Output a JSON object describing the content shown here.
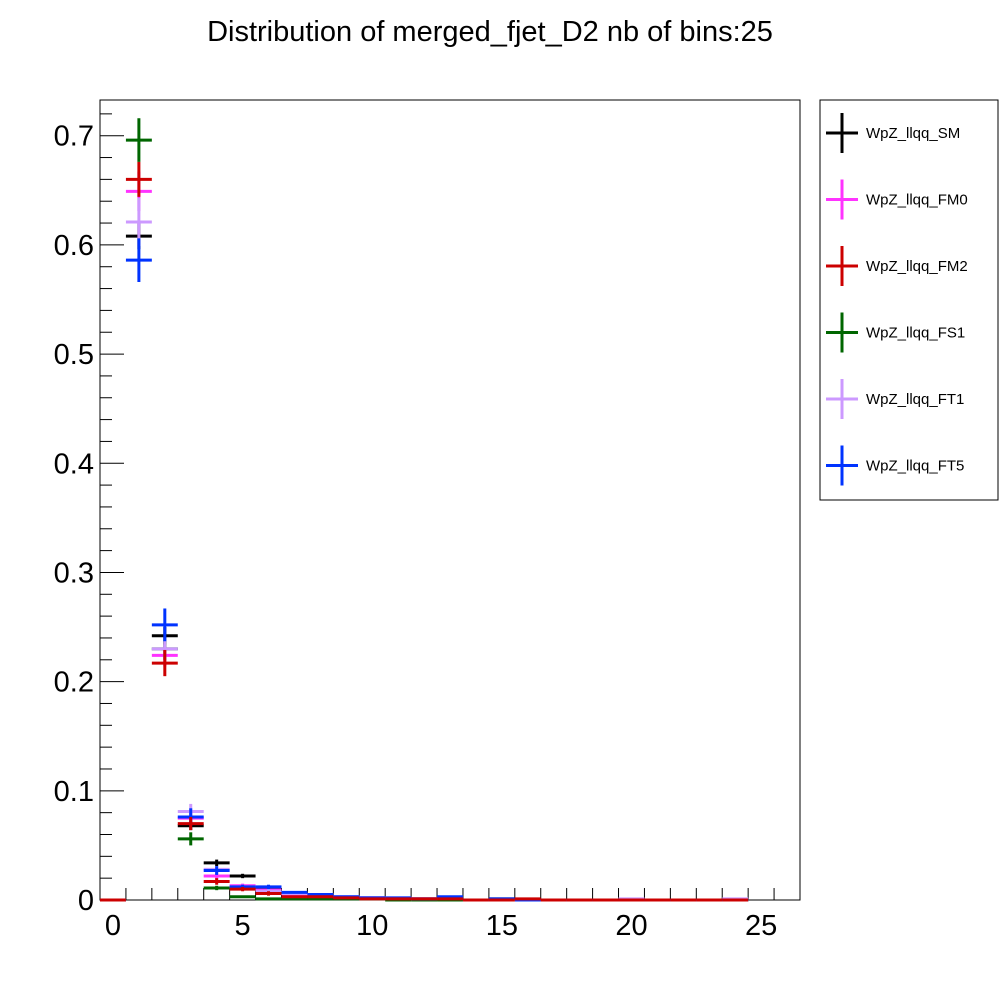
{
  "chart_data": {
    "type": "scatter",
    "title": "Distribution of merged_fjet_D2 nb of bins:25",
    "xlabel": "",
    "ylabel": "",
    "xlim": [
      -0.5,
      26.5
    ],
    "ylim": [
      0,
      0.7327
    ],
    "x_ticks": [
      0,
      5,
      10,
      15,
      20,
      25
    ],
    "x_tick_labels": [
      "0",
      "5",
      "10",
      "15",
      "20",
      "25"
    ],
    "y_ticks": [
      0,
      0.1,
      0.2,
      0.3,
      0.4,
      0.5,
      0.6,
      0.7
    ],
    "y_tick_labels": [
      "0",
      "0.1",
      "0.2",
      "0.3",
      "0.4",
      "0.5",
      "0.6",
      "0.7"
    ],
    "grid": false,
    "legend_position": "right-outside-top",
    "bin_width": 1,
    "x": [
      0,
      1,
      2,
      3,
      4,
      5,
      6,
      7,
      8,
      9,
      10,
      11,
      12,
      13,
      14,
      15,
      16,
      17,
      18,
      19,
      20,
      21,
      22,
      23,
      24
    ],
    "series": [
      {
        "name": "WpZ_llqq_SM",
        "color": "#000000",
        "values": [
          0,
          0.608,
          0.242,
          0.068,
          0.034,
          0.022,
          0.01,
          0.006,
          0.004,
          0.002,
          0.002,
          0.001,
          0.001,
          0.002,
          0,
          0.001,
          0,
          0,
          0,
          0,
          0,
          0,
          0,
          0,
          0
        ],
        "errors": [
          0,
          0.012,
          0.008,
          0.004,
          0.003,
          0.002,
          0.002,
          0.001,
          0.001,
          0.001,
          0.001,
          0.001,
          0.001,
          0.001,
          0,
          0.001,
          0,
          0,
          0,
          0,
          0,
          0,
          0,
          0,
          0
        ]
      },
      {
        "name": "WpZ_llqq_FM0",
        "color": "#ff33ff",
        "values": [
          0,
          0.649,
          0.224,
          0.075,
          0.022,
          0.013,
          0.009,
          0.005,
          0.004,
          0.002,
          0.002,
          0.001,
          0.001,
          0.002,
          0,
          0,
          0,
          0,
          0,
          0,
          0,
          0,
          0,
          0,
          0
        ],
        "errors": [
          0,
          0.018,
          0.01,
          0.006,
          0.003,
          0.002,
          0.002,
          0.001,
          0.001,
          0.001,
          0.001,
          0.001,
          0.001,
          0.001,
          0,
          0,
          0,
          0,
          0,
          0,
          0,
          0,
          0,
          0,
          0
        ]
      },
      {
        "name": "WpZ_llqq_FM2",
        "color": "#cc0000",
        "values": [
          0,
          0.66,
          0.217,
          0.07,
          0.017,
          0.01,
          0.006,
          0.003,
          0.003,
          0.002,
          0.001,
          0.001,
          0.001,
          0.001,
          0,
          0,
          0.001,
          0,
          0,
          0,
          0,
          0,
          0,
          0,
          0
        ],
        "errors": [
          0,
          0.016,
          0.012,
          0.006,
          0.003,
          0.002,
          0.002,
          0.001,
          0.001,
          0.001,
          0.001,
          0.001,
          0.001,
          0.001,
          0,
          0,
          0.001,
          0,
          0,
          0,
          0,
          0,
          0,
          0,
          0
        ],
        "draw_order": 2
      },
      {
        "name": "WpZ_llqq_FS1",
        "color": "#006600",
        "values": [
          0,
          0.696,
          0.23,
          0.056,
          0.011,
          0.003,
          0.001,
          0.001,
          0.001,
          0.001,
          0.001,
          0,
          0,
          0,
          0,
          0,
          0,
          0,
          0,
          0,
          0,
          0,
          0,
          0,
          0
        ],
        "errors": [
          0,
          0.02,
          0.01,
          0.006,
          0.002,
          0.001,
          0.001,
          0.001,
          0.001,
          0.001,
          0.001,
          0,
          0,
          0,
          0,
          0,
          0,
          0,
          0,
          0,
          0,
          0,
          0,
          0,
          0
        ]
      },
      {
        "name": "WpZ_llqq_FT1",
        "color": "#cc99ff",
        "values": [
          0,
          0.621,
          0.23,
          0.081,
          0.028,
          0.012,
          0.008,
          0.006,
          0.005,
          0.003,
          0.002,
          0.002,
          0.001,
          0.002,
          0,
          0,
          0,
          0,
          0,
          0,
          0.001,
          0,
          0,
          0,
          0.001
        ],
        "errors": [
          0,
          0.022,
          0.01,
          0.007,
          0.003,
          0.002,
          0.002,
          0.001,
          0.001,
          0.001,
          0.001,
          0.001,
          0.001,
          0.001,
          0,
          0,
          0,
          0,
          0,
          0,
          0.001,
          0,
          0,
          0,
          0.001
        ]
      },
      {
        "name": "WpZ_llqq_FT5",
        "color": "#0033ff",
        "values": [
          0,
          0.586,
          0.252,
          0.076,
          0.027,
          0.012,
          0.012,
          0.007,
          0.005,
          0.003,
          0.002,
          0.002,
          0.001,
          0.003,
          0,
          0.001,
          0,
          0,
          0,
          0,
          0,
          0,
          0,
          0,
          0
        ],
        "errors": [
          0,
          0.02,
          0.015,
          0.008,
          0.004,
          0.002,
          0.002,
          0.001,
          0.001,
          0.001,
          0.001,
          0.001,
          0.001,
          0.001,
          0,
          0.001,
          0,
          0,
          0,
          0,
          0,
          0,
          0,
          0,
          0
        ]
      }
    ]
  }
}
